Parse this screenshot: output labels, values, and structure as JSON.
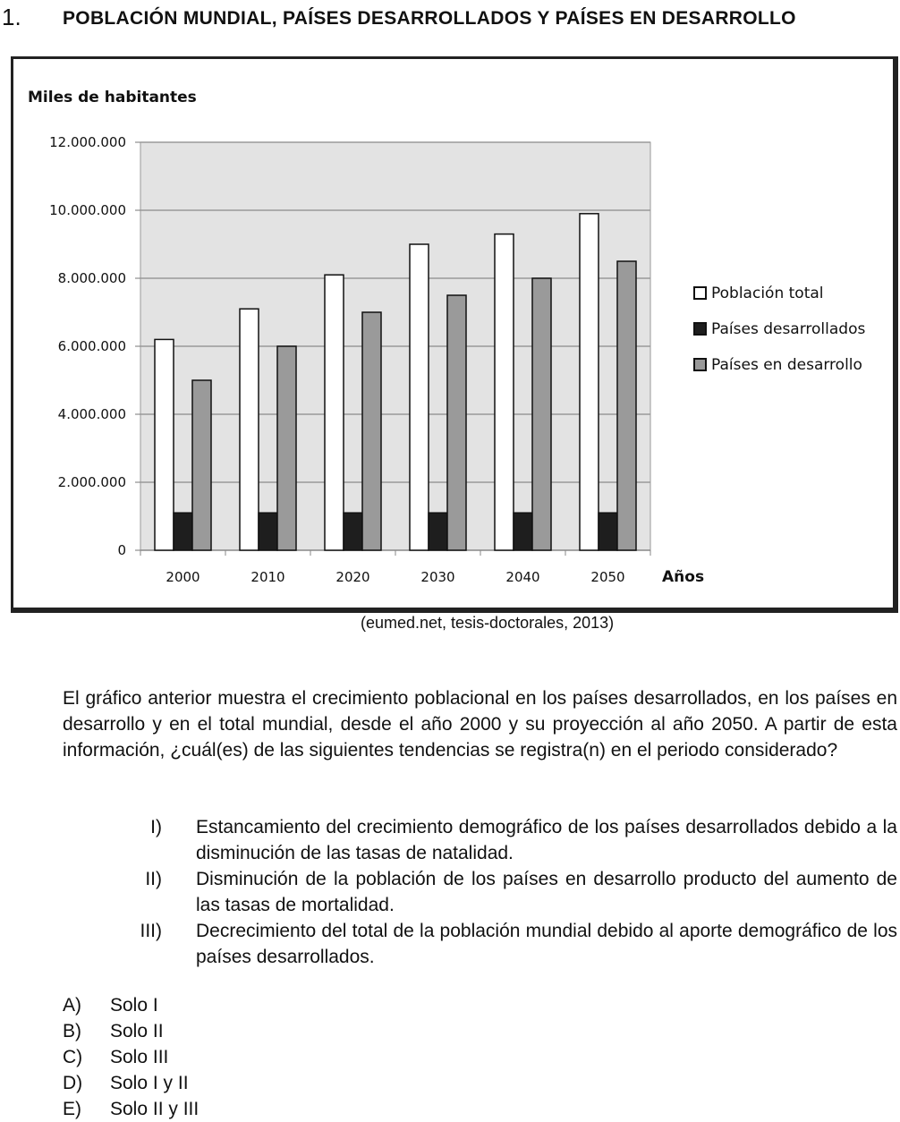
{
  "question": {
    "number": "1.",
    "title": "POBLACIÓN MUNDIAL, PAÍSES DESARROLLADOS Y PAÍSES EN DESARROLLO"
  },
  "chart_data": {
    "type": "bar",
    "ylabel": "Miles de habitantes",
    "xlabel": "Años",
    "categories": [
      "2000",
      "2010",
      "2020",
      "2030",
      "2040",
      "2050"
    ],
    "ylim": [
      0,
      12000000
    ],
    "yticks": [
      0,
      2000000,
      4000000,
      6000000,
      8000000,
      10000000,
      12000000
    ],
    "ytick_labels": [
      "0",
      "2.000.000",
      "4.000.000",
      "6.000.000",
      "8.000.000",
      "10.000.000",
      "12.000.000"
    ],
    "grid": true,
    "legend_position": "right",
    "series": [
      {
        "name": "Población total",
        "values": [
          6200000,
          7100000,
          8100000,
          9000000,
          9300000,
          9900000
        ],
        "color": "#ffffff"
      },
      {
        "name": "Países desarrollados",
        "values": [
          1100000,
          1100000,
          1100000,
          1100000,
          1100000,
          1100000
        ],
        "color": "#1e1e1e"
      },
      {
        "name": "Países en desarrollo",
        "values": [
          5000000,
          6000000,
          7000000,
          7500000,
          8000000,
          8500000
        ],
        "color": "#9a9a9a"
      }
    ],
    "plot_background": "#e3e3e3"
  },
  "source": "(eumed.net, tesis-doctorales, 2013)",
  "intro": "El gráfico anterior muestra el crecimiento poblacional en los países desarrollados, en los países en desarrollo y en el total mundial, desde el año 2000 y su proyección al año 2050. A partir de esta información, ¿cuál(es) de las siguientes tendencias se registra(n) en el periodo considerado?",
  "statements": [
    {
      "num": "I)",
      "text": "Estancamiento del crecimiento demográfico de los países desarrollados debido a la disminución de las tasas de natalidad."
    },
    {
      "num": "II)",
      "text": "Disminución de la población de los países en desarrollo producto del aumento de las tasas de mortalidad."
    },
    {
      "num": "III)",
      "text": "Decrecimiento del total de la población mundial debido al aporte demográfico de los países desarrollados."
    }
  ],
  "options": [
    {
      "letter": "A)",
      "text": "Solo I"
    },
    {
      "letter": "B)",
      "text": "Solo II"
    },
    {
      "letter": "C)",
      "text": "Solo III"
    },
    {
      "letter": "D)",
      "text": "Solo I y II"
    },
    {
      "letter": "E)",
      "text": "Solo II y III"
    }
  ]
}
